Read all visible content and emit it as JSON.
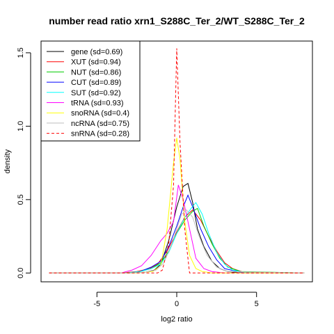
{
  "chart_data": {
    "type": "line",
    "title": "number read ratio xrn1_S288C_Ter_2/WT_S288C_Ter_2",
    "xlabel": "log2 ratio",
    "ylabel": "density",
    "xlim": [
      -8.5,
      8.5
    ],
    "ylim": [
      -0.06,
      1.58
    ],
    "x_ticks": [
      -5,
      0,
      5
    ],
    "x_tick_labels": [
      "-5",
      "0",
      "5"
    ],
    "y_ticks": [
      0.0,
      0.5,
      1.0,
      1.5
    ],
    "y_tick_labels": [
      "0.0",
      "0.5",
      "1.0",
      "1.5"
    ],
    "legend_position": "top-left",
    "series": [
      {
        "name": "gene (sd=0.69)",
        "color": "#000000",
        "dash": "solid",
        "x": [
          -8,
          -3,
          -2,
          -1.4,
          -1,
          -0.5,
          0,
          0.4,
          0.7,
          1.0,
          1.3,
          1.7,
          2.2,
          2.7,
          3.2,
          4,
          8
        ],
        "y": [
          0,
          0,
          0.005,
          0.02,
          0.06,
          0.22,
          0.45,
          0.59,
          0.61,
          0.48,
          0.3,
          0.18,
          0.08,
          0.03,
          0.01,
          0,
          0
        ]
      },
      {
        "name": "XUT (sd=0.94)",
        "color": "#ff0000",
        "dash": "solid",
        "x": [
          -8,
          -3.5,
          -2.5,
          -1.7,
          -1.2,
          -0.6,
          0,
          0.5,
          1.0,
          1.5,
          2.0,
          2.5,
          3.0,
          3.5,
          4.2,
          8
        ],
        "y": [
          0,
          0,
          0.01,
          0.03,
          0.06,
          0.15,
          0.28,
          0.38,
          0.43,
          0.36,
          0.25,
          0.15,
          0.07,
          0.03,
          0.005,
          0
        ]
      },
      {
        "name": "NUT (sd=0.86)",
        "color": "#00cc00",
        "dash": "solid",
        "x": [
          -8,
          -3.2,
          -2.3,
          -1.6,
          -1.0,
          -0.5,
          0,
          0.5,
          1.0,
          1.3,
          1.7,
          2.2,
          2.7,
          3.2,
          4,
          8
        ],
        "y": [
          0,
          0,
          0.01,
          0.03,
          0.07,
          0.15,
          0.27,
          0.36,
          0.42,
          0.44,
          0.32,
          0.2,
          0.1,
          0.04,
          0.01,
          0
        ]
      },
      {
        "name": "CUT (sd=0.89)",
        "color": "#0000ff",
        "dash": "solid",
        "x": [
          -8,
          -3.2,
          -2.3,
          -1.6,
          -1.0,
          -0.5,
          0,
          0.4,
          0.7,
          1.0,
          1.5,
          2.0,
          2.5,
          3.0,
          4,
          8
        ],
        "y": [
          0,
          0,
          0.01,
          0.04,
          0.08,
          0.18,
          0.32,
          0.45,
          0.53,
          0.45,
          0.3,
          0.18,
          0.09,
          0.03,
          0.005,
          0
        ]
      },
      {
        "name": "SUT (sd=0.92)",
        "color": "#00ffff",
        "dash": "solid",
        "x": [
          -8,
          -3.2,
          -2.3,
          -1.6,
          -1.0,
          -0.5,
          0,
          0.5,
          0.9,
          1.2,
          1.6,
          2.0,
          2.5,
          3.0,
          3.5,
          4.2,
          8
        ],
        "y": [
          0,
          0,
          0.01,
          0.03,
          0.06,
          0.14,
          0.27,
          0.38,
          0.44,
          0.48,
          0.4,
          0.27,
          0.14,
          0.06,
          0.02,
          0.005,
          0
        ]
      },
      {
        "name": "tRNA (sd=0.93)",
        "color": "#ff00ff",
        "dash": "solid",
        "x": [
          -8,
          -3.5,
          -2.8,
          -2.2,
          -1.6,
          -1.0,
          -0.6,
          -0.2,
          0.1,
          0.4,
          0.8,
          1.2,
          1.7,
          2.2,
          3.0,
          8
        ],
        "y": [
          0,
          0,
          0.02,
          0.05,
          0.12,
          0.22,
          0.27,
          0.35,
          0.6,
          0.5,
          0.3,
          0.1,
          0.03,
          0.01,
          0,
          0
        ]
      },
      {
        "name": "snoRNA (sd=0.4)",
        "color": "#ffff00",
        "dash": "solid",
        "x": [
          -8,
          -2.5,
          -1.5,
          -1.0,
          -0.6,
          -0.2,
          0,
          0.2,
          0.5,
          0.8,
          1.2,
          1.6,
          2.2,
          3.0,
          8
        ],
        "y": [
          0,
          0,
          0.01,
          0.05,
          0.3,
          0.75,
          0.92,
          0.78,
          0.35,
          0.12,
          0.03,
          0.01,
          0,
          0,
          0
        ]
      },
      {
        "name": "ncRNA (sd=0.75)",
        "color": "#bebebe",
        "dash": "solid",
        "x": [
          -8,
          -3,
          -2,
          -1.3,
          -0.8,
          -0.3,
          0,
          0.3,
          0.6,
          1.0,
          1.4,
          1.9,
          2.5,
          3.2,
          8
        ],
        "y": [
          0,
          0,
          0.005,
          0.02,
          0.07,
          0.2,
          0.3,
          0.4,
          0.43,
          0.38,
          0.25,
          0.12,
          0.04,
          0.01,
          0
        ]
      },
      {
        "name": "snRNA (sd=0.28)",
        "color": "#ff0000",
        "dash": "dashed",
        "x": [
          -8,
          -1.2,
          -0.9,
          -0.5,
          -0.2,
          0,
          0.2,
          0.5,
          0.8,
          1.2,
          8
        ],
        "y": [
          0,
          0,
          0.02,
          0.2,
          0.6,
          1.53,
          0.9,
          0.3,
          0.0,
          0,
          0
        ]
      }
    ]
  }
}
